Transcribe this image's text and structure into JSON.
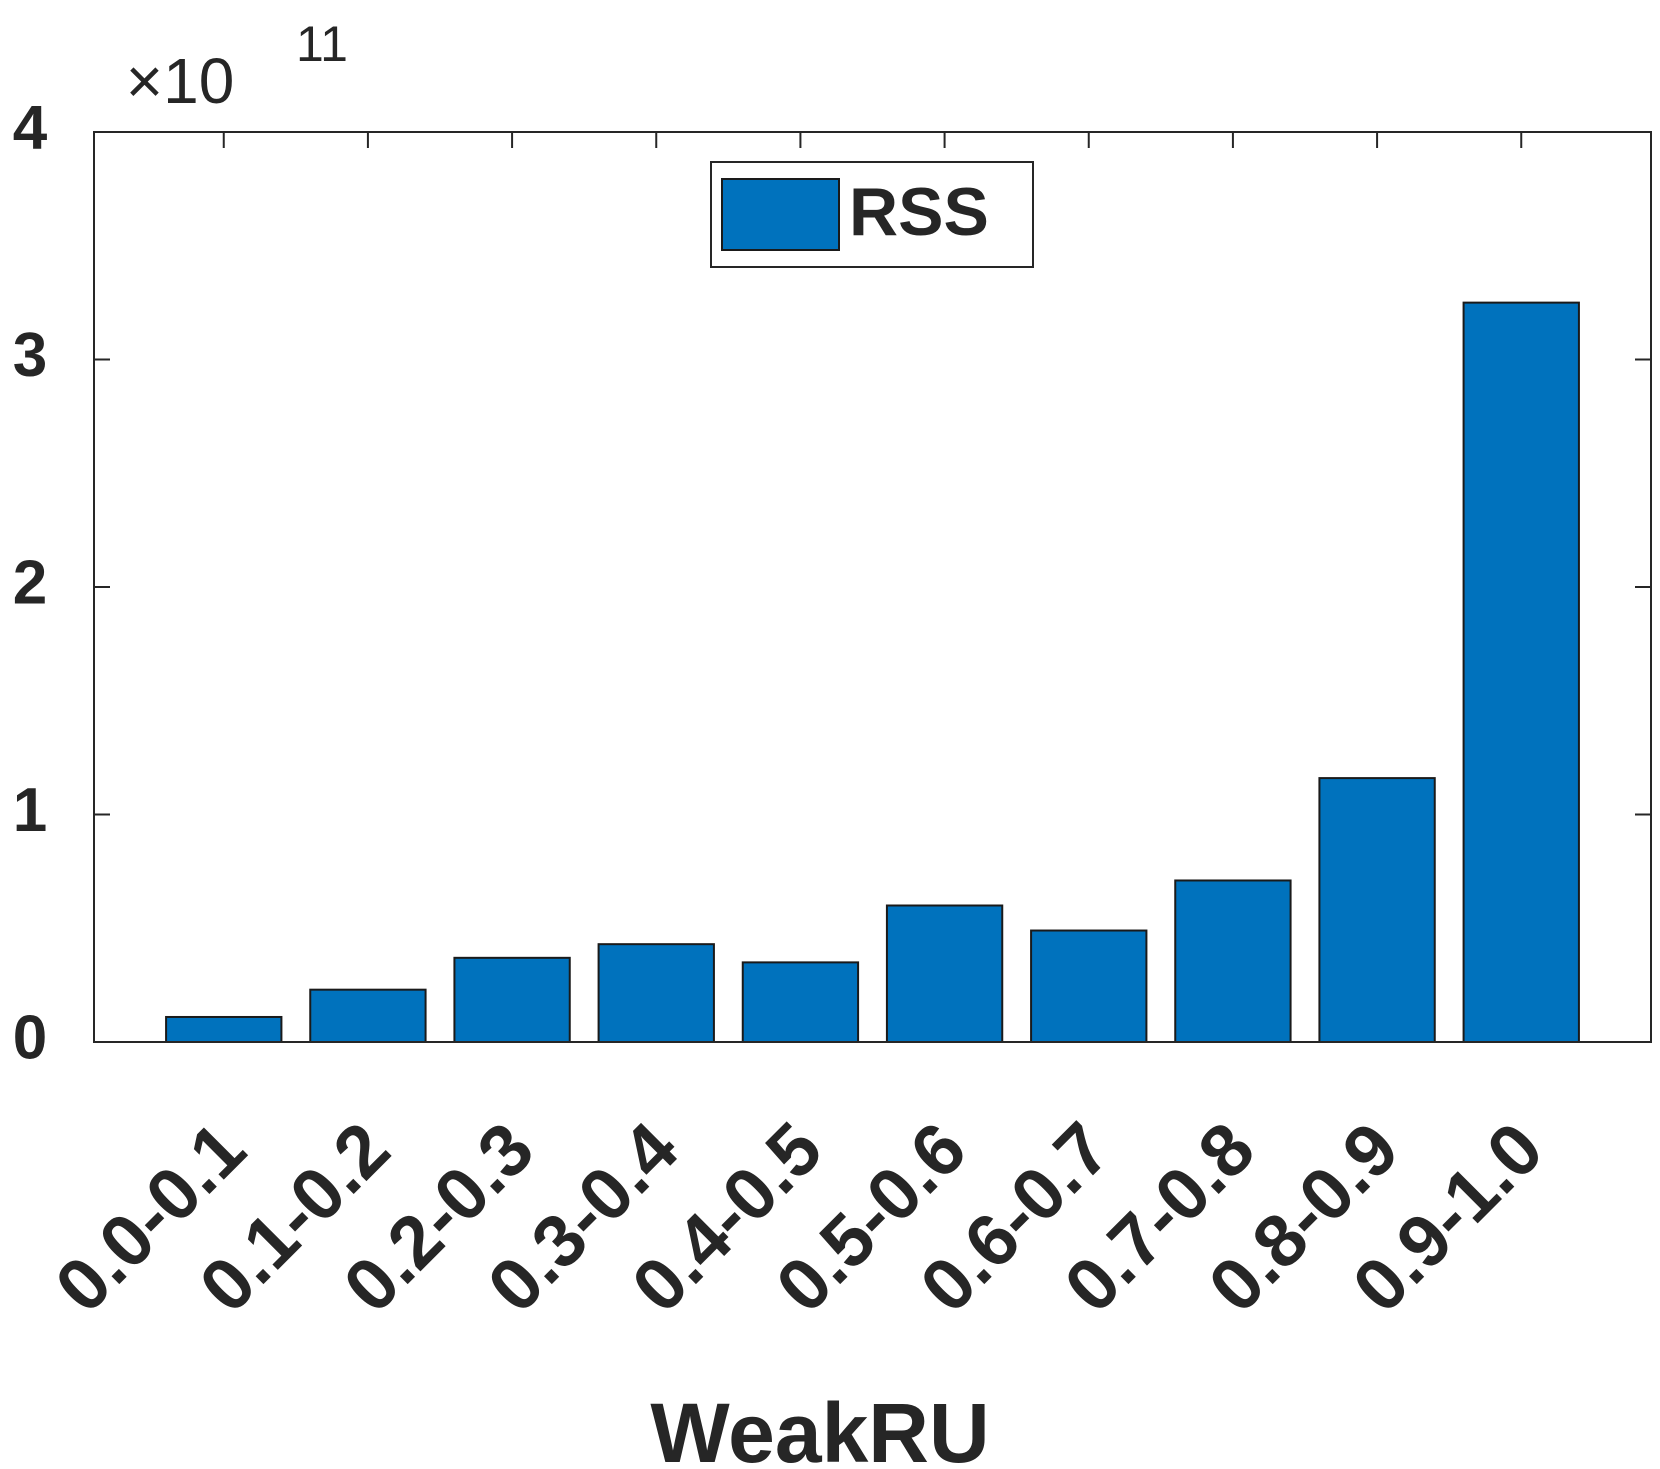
{
  "chart_data": {
    "type": "bar",
    "categories": [
      "0.0-0.1",
      "0.1-0.2",
      "0.2-0.3",
      "0.3-0.4",
      "0.4-0.5",
      "0.5-0.6",
      "0.6-0.7",
      "0.7-0.8",
      "0.8-0.9",
      "0.9-1.0"
    ],
    "series": [
      {
        "name": "RSS",
        "color": "#0072bd",
        "values": [
          0.11,
          0.23,
          0.37,
          0.43,
          0.35,
          0.6,
          0.49,
          0.71,
          1.16,
          3.25
        ]
      }
    ],
    "xlabel": "WeakRU",
    "y_multiplier": "×10",
    "y_exponent": "11",
    "ylim": [
      0,
      4
    ],
    "yticks": [
      0,
      1,
      2,
      3,
      4
    ],
    "legend": "top"
  }
}
